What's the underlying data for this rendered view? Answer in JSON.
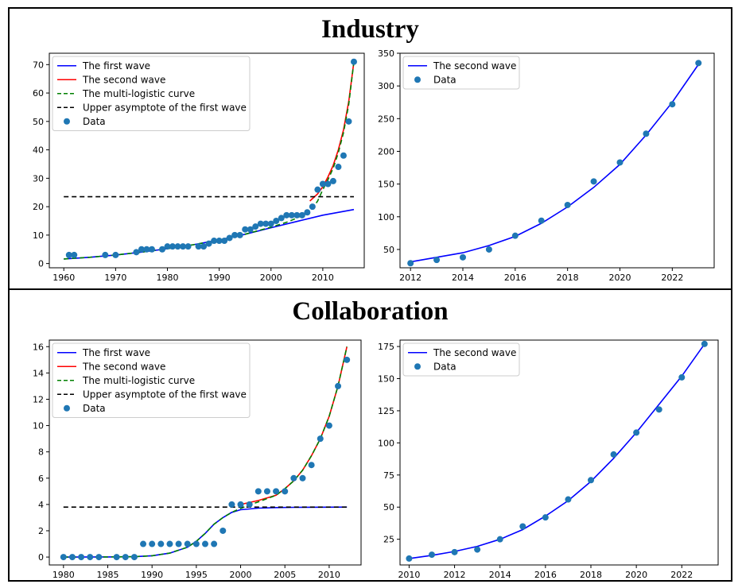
{
  "panels": {
    "industry_title": "Industry",
    "collaboration_title": "Collaboration"
  },
  "colors": {
    "first_wave": "#0000ff",
    "second_wave": "#ff0000",
    "multi_logistic": "#008000",
    "asymptote": "#000000",
    "data": "#1f77b4"
  },
  "chart_data": [
    {
      "id": "industry-left",
      "type": "line",
      "title": "Industry",
      "xlim": [
        1957.2,
        2018
      ],
      "ylim": [
        -1.5,
        74
      ],
      "xticks": [
        1960,
        1970,
        1980,
        1990,
        2000,
        2010
      ],
      "yticks": [
        0,
        10,
        20,
        30,
        40,
        50,
        60,
        70
      ],
      "legend_position": "upper-left",
      "legend": [
        "The first wave",
        "The second wave",
        "The multi-logistic curve",
        "Upper asymptote of the first wave",
        "Data"
      ],
      "series": [
        {
          "name": "The first wave",
          "style": "solid",
          "color": "#0000ff",
          "x": [
            1960,
            1965,
            1970,
            1975,
            1980,
            1985,
            1990,
            1995,
            2000,
            2005,
            2010,
            2016
          ],
          "y": [
            1.6,
            2.2,
            3.0,
            4.0,
            5.2,
            6.6,
            8.3,
            10.3,
            12.6,
            14.8,
            17.0,
            19.0
          ]
        },
        {
          "name": "The second wave",
          "style": "solid",
          "color": "#ff0000",
          "x": [
            2007.5,
            2009,
            2010,
            2011,
            2012,
            2013,
            2014,
            2015,
            2016
          ],
          "y": [
            22,
            24.5,
            27,
            30.5,
            34.5,
            40,
            47,
            57,
            71
          ]
        },
        {
          "name": "The multi-logistic curve",
          "style": "dashed",
          "color": "#008000",
          "x": [
            1960,
            1965,
            1970,
            1975,
            1980,
            1985,
            1990,
            1995,
            2000,
            2003,
            2005,
            2007,
            2008,
            2009,
            2010,
            2011,
            2012,
            2013,
            2014,
            2015,
            2016
          ],
          "y": [
            1.6,
            2.2,
            3.0,
            4.0,
            5.2,
            6.6,
            8.3,
            10.3,
            12.8,
            14.5,
            16,
            18,
            19.5,
            22,
            26,
            29.5,
            33.5,
            39,
            46,
            56,
            71
          ]
        },
        {
          "name": "Upper asymptote of the first wave",
          "style": "dashed",
          "color": "#000000",
          "x": [
            1960,
            2016
          ],
          "y": [
            23.5,
            23.5
          ]
        },
        {
          "name": "Data",
          "style": "scatter",
          "color": "#1f77b4",
          "x": [
            1961,
            1962,
            1968,
            1970,
            1974,
            1975,
            1976,
            1977,
            1979,
            1980,
            1981,
            1982,
            1983,
            1984,
            1986,
            1987,
            1988,
            1989,
            1990,
            1991,
            1992,
            1993,
            1994,
            1995,
            1996,
            1997,
            1998,
            1999,
            2000,
            2001,
            2002,
            2003,
            2004,
            2005,
            2006,
            2007,
            2008,
            2009,
            2010,
            2011,
            2012,
            2013,
            2014,
            2015,
            2016
          ],
          "y": [
            3,
            3,
            3,
            3,
            4,
            5,
            5,
            5,
            5,
            6,
            6,
            6,
            6,
            6,
            6,
            6,
            7,
            8,
            8,
            8,
            9,
            10,
            10,
            12,
            12,
            13,
            14,
            14,
            14,
            15,
            16,
            17,
            17,
            17,
            17,
            18,
            20,
            26,
            28,
            28,
            29,
            34,
            38,
            50,
            71
          ]
        }
      ]
    },
    {
      "id": "industry-right",
      "type": "line",
      "xlim": [
        2011.6,
        2023.6
      ],
      "ylim": [
        22,
        350
      ],
      "xticks": [
        2012,
        2014,
        2016,
        2018,
        2020,
        2022
      ],
      "yticks": [
        50,
        100,
        150,
        200,
        250,
        300,
        350
      ],
      "legend_position": "upper-left",
      "legend": [
        "The second wave",
        "Data"
      ],
      "series": [
        {
          "name": "The second wave",
          "style": "solid",
          "color": "#0000ff",
          "x": [
            2012,
            2013,
            2014,
            2015,
            2016,
            2017,
            2018,
            2019,
            2020,
            2021,
            2022,
            2023
          ],
          "y": [
            31,
            38,
            45,
            56,
            70,
            90,
            115,
            145,
            180,
            225,
            275,
            333
          ]
        },
        {
          "name": "Data",
          "style": "scatter",
          "color": "#1f77b4",
          "x": [
            2012,
            2013,
            2014,
            2015,
            2016,
            2017,
            2018,
            2019,
            2020,
            2021,
            2022,
            2023
          ],
          "y": [
            29,
            34,
            38,
            50,
            71,
            94,
            118,
            154,
            183,
            227,
            272,
            335
          ]
        }
      ]
    },
    {
      "id": "collaboration-left",
      "type": "line",
      "title": "Collaboration",
      "xlim": [
        1978.4,
        2013.6
      ],
      "ylim": [
        -0.6,
        16.5
      ],
      "xticks": [
        1980,
        1985,
        1990,
        1995,
        2000,
        2005,
        2010
      ],
      "yticks": [
        0,
        2,
        4,
        6,
        8,
        10,
        12,
        14,
        16
      ],
      "legend_position": "upper-left",
      "legend": [
        "The first wave",
        "The second wave",
        "The multi-logistic curve",
        "Upper asymptote of the first wave",
        "Data"
      ],
      "series": [
        {
          "name": "The first wave",
          "style": "solid",
          "color": "#0000ff",
          "x": [
            1980,
            1985,
            1988,
            1990,
            1992,
            1994,
            1995,
            1996,
            1997,
            1998,
            1999,
            2000,
            2002,
            2004,
            2006,
            2012
          ],
          "y": [
            0,
            0.01,
            0.03,
            0.1,
            0.3,
            0.75,
            1.2,
            1.8,
            2.5,
            3.0,
            3.4,
            3.6,
            3.72,
            3.76,
            3.78,
            3.8
          ]
        },
        {
          "name": "The second wave",
          "style": "solid",
          "color": "#ff0000",
          "x": [
            2000,
            2002,
            2004,
            2005,
            2006,
            2007,
            2008,
            2009,
            2010,
            2011,
            2012
          ],
          "y": [
            4.0,
            4.3,
            4.7,
            5.2,
            5.8,
            6.6,
            7.7,
            9.0,
            10.7,
            13.0,
            16.0
          ]
        },
        {
          "name": "The multi-logistic curve",
          "style": "dashed",
          "color": "#008000",
          "x": [
            1980,
            1985,
            1988,
            1990,
            1992,
            1994,
            1995,
            1996,
            1997,
            1998,
            1999,
            2000,
            2002,
            2004,
            2005,
            2006,
            2007,
            2008,
            2009,
            2010,
            2011,
            2012
          ],
          "y": [
            0,
            0.01,
            0.03,
            0.1,
            0.3,
            0.75,
            1.2,
            1.8,
            2.5,
            3.0,
            3.4,
            3.7,
            4.2,
            4.7,
            5.2,
            5.8,
            6.6,
            7.7,
            9.0,
            10.7,
            13.0,
            16.0
          ]
        },
        {
          "name": "Upper asymptote of the first wave",
          "style": "dashed",
          "color": "#000000",
          "x": [
            1980,
            2012
          ],
          "y": [
            3.8,
            3.8
          ]
        },
        {
          "name": "Data",
          "style": "scatter",
          "color": "#1f77b4",
          "x": [
            1980,
            1981,
            1982,
            1983,
            1984,
            1986,
            1987,
            1988,
            1989,
            1990,
            1991,
            1992,
            1993,
            1994,
            1995,
            1996,
            1997,
            1998,
            1999,
            2000,
            2001,
            2002,
            2003,
            2004,
            2005,
            2006,
            2007,
            2008,
            2009,
            2010,
            2011,
            2012
          ],
          "y": [
            0,
            0,
            0,
            0,
            0,
            0,
            0,
            0,
            1,
            1,
            1,
            1,
            1,
            1,
            1,
            1,
            1,
            2,
            4,
            4,
            4,
            5,
            5,
            5,
            5,
            6,
            6,
            7,
            9,
            10,
            13,
            15
          ]
        }
      ]
    },
    {
      "id": "collaboration-right",
      "type": "line",
      "xlim": [
        2009.6,
        2023.6
      ],
      "ylim": [
        5,
        180
      ],
      "xticks": [
        2010,
        2012,
        2014,
        2016,
        2018,
        2020,
        2022
      ],
      "yticks": [
        25,
        50,
        75,
        100,
        125,
        150,
        175
      ],
      "legend_position": "upper-left",
      "legend": [
        "The second wave",
        "Data"
      ],
      "series": [
        {
          "name": "The second wave",
          "style": "solid",
          "color": "#0000ff",
          "x": [
            2010,
            2011,
            2012,
            2013,
            2014,
            2015,
            2016,
            2017,
            2018,
            2019,
            2020,
            2021,
            2022,
            2023
          ],
          "y": [
            10,
            12.5,
            15.5,
            19.5,
            25,
            32.5,
            43,
            55,
            70,
            88,
            108,
            130,
            152,
            177
          ]
        },
        {
          "name": "Data",
          "style": "scatter",
          "color": "#1f77b4",
          "x": [
            2010,
            2011,
            2012,
            2013,
            2014,
            2015,
            2016,
            2017,
            2018,
            2019,
            2020,
            2021,
            2022,
            2023
          ],
          "y": [
            10,
            13,
            15,
            17,
            25,
            35,
            42,
            56,
            71,
            91,
            108,
            126,
            151,
            177
          ]
        }
      ]
    }
  ]
}
